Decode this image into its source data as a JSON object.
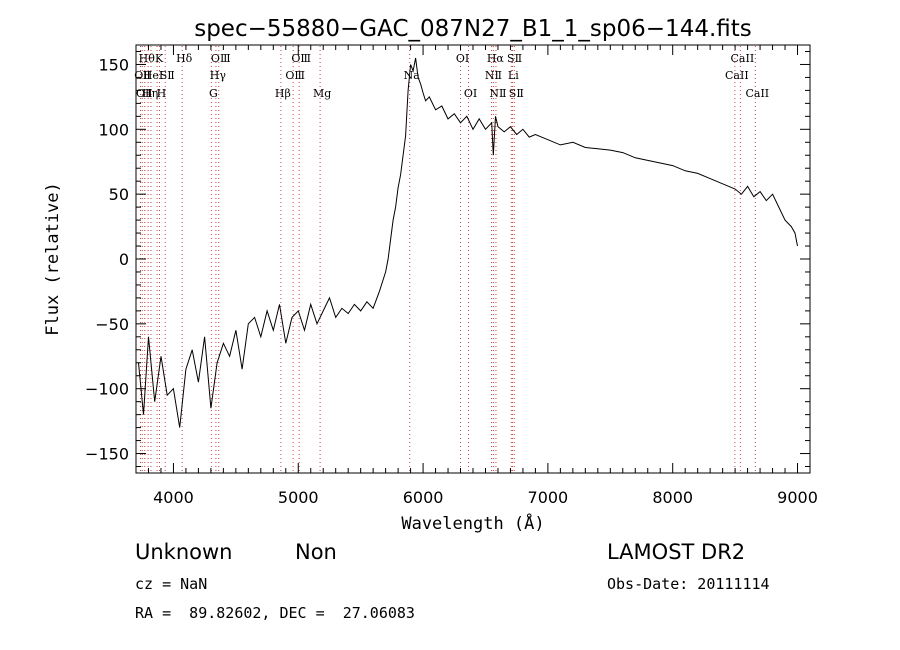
{
  "chart_data": {
    "type": "line",
    "title": "spec−55880−GAC_087N27_B1_1_sp06−144.fits",
    "xlabel": "Wavelength (Å)",
    "ylabel": "Flux (relative)",
    "xlim": [
      3700,
      9100
    ],
    "ylim": [
      -165,
      165
    ],
    "xticks": [
      4000,
      5000,
      6000,
      7000,
      8000,
      9000
    ],
    "yticks": [
      -150,
      -100,
      -50,
      0,
      50,
      100,
      150
    ],
    "grid": false,
    "legend": "none",
    "line_color": "#000000",
    "marker_line_color": "#d04040",
    "series": [
      {
        "x": [
          3720,
          3760,
          3800,
          3850,
          3900,
          3950,
          4000,
          4050,
          4100,
          4150,
          4200,
          4250,
          4300,
          4350,
          4400,
          4450,
          4500,
          4550,
          4600,
          4650,
          4700,
          4750,
          4800,
          4850,
          4900,
          4950,
          5000,
          5050,
          5100,
          5150,
          5200,
          5250,
          5300,
          5350,
          5400,
          5450,
          5500,
          5550,
          5600,
          5650,
          5700,
          5720,
          5740,
          5760,
          5780,
          5800,
          5820,
          5840,
          5860,
          5880,
          5900,
          5920,
          5940,
          5960,
          5980,
          6000,
          6020,
          6050,
          6100,
          6150,
          6200,
          6250,
          6300,
          6350,
          6400,
          6450,
          6500,
          6550,
          6563,
          6580,
          6600,
          6650,
          6700,
          6750,
          6800,
          6850,
          6900,
          7000,
          7100,
          7200,
          7300,
          7400,
          7500,
          7600,
          7700,
          7800,
          7900,
          8000,
          8100,
          8200,
          8300,
          8400,
          8500,
          8550,
          8600,
          8650,
          8700,
          8750,
          8800,
          8850,
          8900,
          8950,
          8980,
          9000
        ],
        "values": [
          -80,
          -120,
          -60,
          -110,
          -75,
          -105,
          -100,
          -130,
          -85,
          -70,
          -95,
          -60,
          -115,
          -80,
          -65,
          -75,
          -55,
          -85,
          -50,
          -45,
          -60,
          -40,
          -55,
          -35,
          -65,
          -45,
          -40,
          -55,
          -35,
          -50,
          -40,
          -30,
          -45,
          -38,
          -42,
          -35,
          -40,
          -33,
          -38,
          -25,
          -10,
          0,
          15,
          30,
          40,
          55,
          65,
          80,
          95,
          130,
          150,
          145,
          155,
          140,
          135,
          128,
          122,
          125,
          115,
          118,
          108,
          112,
          105,
          110,
          100,
          108,
          100,
          105,
          80,
          110,
          102,
          98,
          102,
          96,
          100,
          94,
          96,
          92,
          88,
          90,
          86,
          85,
          84,
          82,
          78,
          76,
          74,
          72,
          68,
          66,
          62,
          58,
          54,
          50,
          56,
          48,
          52,
          45,
          50,
          40,
          30,
          25,
          20,
          10
        ]
      }
    ],
    "line_markers": [
      {
        "x": 3736,
        "label": "OⅡ",
        "row": 1
      },
      {
        "x": 3750,
        "label": "OⅡ",
        "row": 2
      },
      {
        "x": 3770,
        "label": "Hθ",
        "row": 0
      },
      {
        "x": 3797,
        "label": "Hη",
        "row": 2
      },
      {
        "x": 3820,
        "label": "HeI",
        "row": 1
      },
      {
        "x": 3869,
        "label": "K",
        "row": 0
      },
      {
        "x": 3888,
        "label": "H",
        "row": 2
      },
      {
        "x": 3934,
        "label": "SⅡ",
        "row": 1
      },
      {
        "x": 4070,
        "label": "Hδ",
        "row": 0
      },
      {
        "x": 4304,
        "label": "G",
        "row": 2
      },
      {
        "x": 4340,
        "label": "Hγ",
        "row": 1
      },
      {
        "x": 4363,
        "label": "OⅢ",
        "row": 0
      },
      {
        "x": 4861,
        "label": "Hβ",
        "row": 2
      },
      {
        "x": 4959,
        "label": "OⅢ",
        "row": 1
      },
      {
        "x": 5007,
        "label": "OⅢ",
        "row": 0
      },
      {
        "x": 5175,
        "label": "Mg",
        "row": 2
      },
      {
        "x": 5893,
        "label": "Na",
        "row": 1
      },
      {
        "x": 6300,
        "label": "OⅠ",
        "row": 0
      },
      {
        "x": 6364,
        "label": "OⅠ",
        "row": 2
      },
      {
        "x": 6548,
        "label": "NⅡ",
        "row": 1
      },
      {
        "x": 6563,
        "label": "Hα",
        "row": 0
      },
      {
        "x": 6584,
        "label": "NⅡ",
        "row": 2
      },
      {
        "x": 6707,
        "label": "Li",
        "row": 1
      },
      {
        "x": 6717,
        "label": "SⅡ",
        "row": 0
      },
      {
        "x": 6731,
        "label": "SⅡ",
        "row": 2
      },
      {
        "x": 8498,
        "label": "CaII",
        "row": 1
      },
      {
        "x": 8542,
        "label": "CaII",
        "row": 0
      },
      {
        "x": 8662,
        "label": "CaII",
        "row": 2
      }
    ]
  },
  "info": {
    "class_label": "Unknown",
    "subclass_label": "Non",
    "survey": "LAMOST DR2",
    "redshift": "cz = NaN",
    "obs_date": "Obs-Date: 20111114",
    "coords": "RA =  89.82602, DEC =  27.06083"
  }
}
